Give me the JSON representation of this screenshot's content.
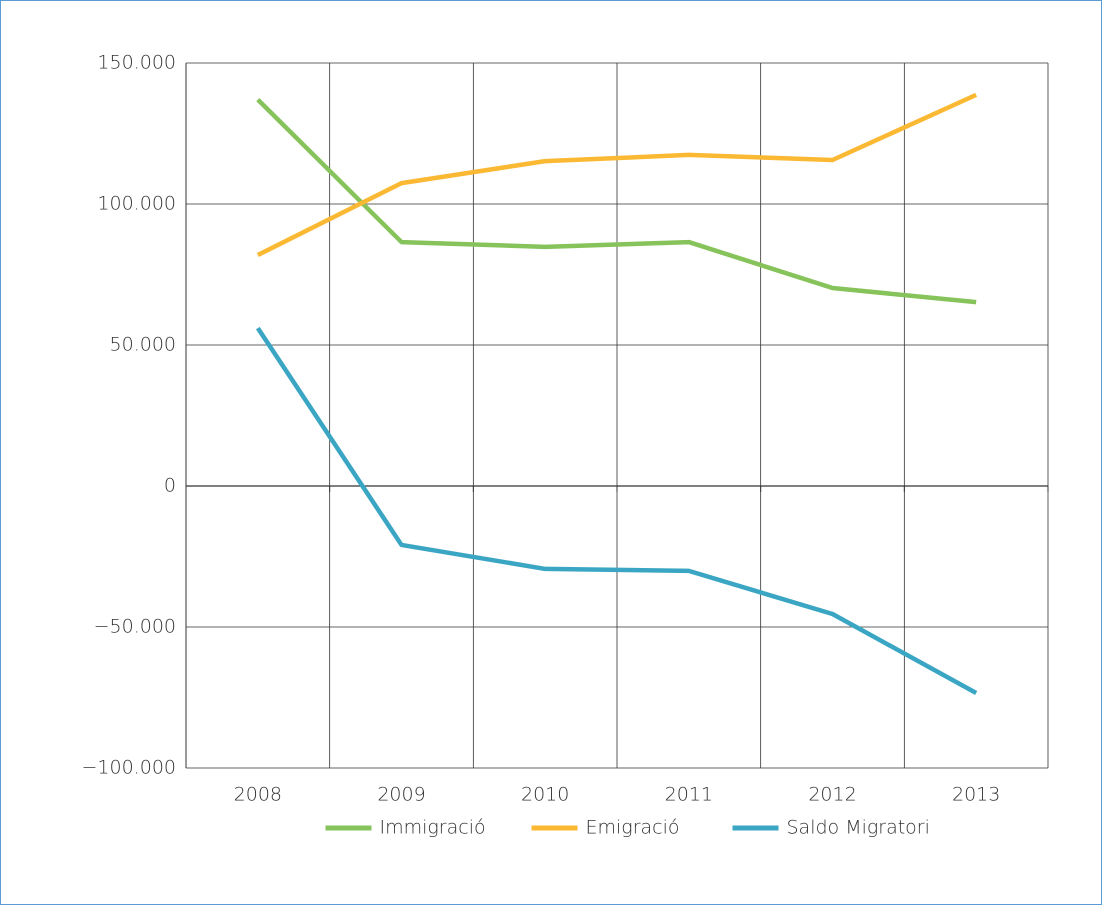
{
  "chart_data": {
    "type": "line",
    "categories": [
      "2008",
      "2009",
      "2010",
      "2011",
      "2012",
      "2013"
    ],
    "series": [
      {
        "name": "Immigració",
        "color": "#86c35a",
        "values": [
          137000,
          86500,
          84800,
          86500,
          70200,
          65200
        ]
      },
      {
        "name": "Emigració",
        "color": "#fbb833",
        "values": [
          81900,
          107400,
          115200,
          117400,
          115600,
          138700
        ]
      },
      {
        "name": "Saldo Migratori",
        "color": "#3aa6c4",
        "values": [
          56000,
          -20900,
          -29400,
          -30100,
          -45400,
          -73400
        ]
      }
    ],
    "ylim": [
      -100000,
      150000
    ],
    "yticks": [
      {
        "value": -100000,
        "label": "−100.000"
      },
      {
        "value": -50000,
        "label": "−50.000"
      },
      0,
      {
        "value": 50000,
        "label": "50.000"
      },
      {
        "value": 100000,
        "label": "100.000"
      },
      {
        "value": 150000,
        "label": "150.000"
      }
    ],
    "grid": true,
    "legend": "bottom"
  }
}
